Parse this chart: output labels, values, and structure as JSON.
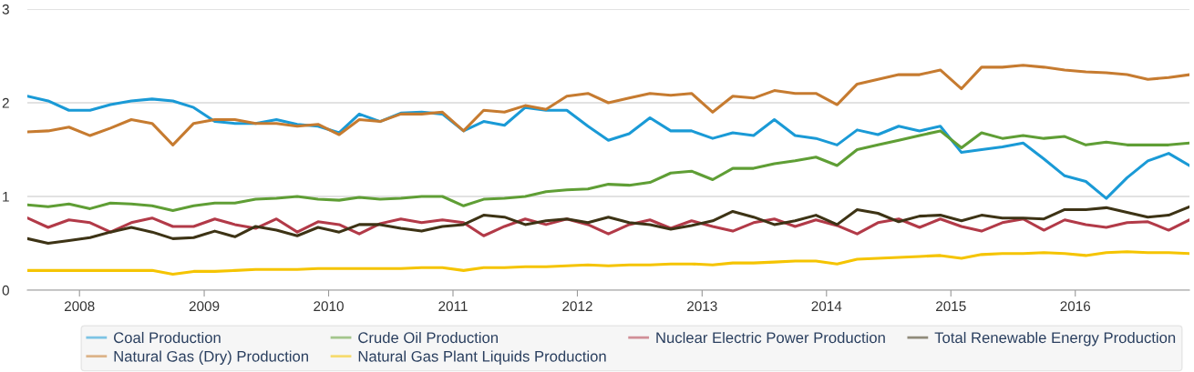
{
  "chart_data": {
    "type": "line",
    "x": [
      "2007-08",
      "2007-10",
      "2007-12",
      "2008-02",
      "2008-04",
      "2008-06",
      "2008-08",
      "2008-10",
      "2008-12",
      "2009-02",
      "2009-04",
      "2009-06",
      "2009-08",
      "2009-10",
      "2009-12",
      "2010-02",
      "2010-04",
      "2010-06",
      "2010-08",
      "2010-10",
      "2010-12",
      "2011-02",
      "2011-04",
      "2011-06",
      "2011-08",
      "2011-10",
      "2011-12",
      "2012-02",
      "2012-04",
      "2012-06",
      "2012-08",
      "2012-10",
      "2012-12",
      "2013-02",
      "2013-04",
      "2013-06",
      "2013-08",
      "2013-10",
      "2013-12",
      "2014-02",
      "2014-04",
      "2014-06",
      "2014-08",
      "2014-10",
      "2014-12",
      "2015-02",
      "2015-04",
      "2015-06",
      "2015-08",
      "2015-10",
      "2015-12",
      "2016-02",
      "2016-04",
      "2016-06",
      "2016-08",
      "2016-10",
      "2016-12"
    ],
    "series": [
      {
        "name": "Coal Production",
        "color": "#1a9ad6",
        "values": [
          2.07,
          2.02,
          1.92,
          1.92,
          1.98,
          2.02,
          2.04,
          2.02,
          1.95,
          1.8,
          1.78,
          1.78,
          1.82,
          1.77,
          1.75,
          1.68,
          1.88,
          1.8,
          1.89,
          1.9,
          1.88,
          1.7,
          1.8,
          1.76,
          1.95,
          1.92,
          1.92,
          1.75,
          1.6,
          1.67,
          1.84,
          1.7,
          1.7,
          1.62,
          1.68,
          1.65,
          1.82,
          1.65,
          1.62,
          1.55,
          1.71,
          1.66,
          1.75,
          1.7,
          1.75,
          1.47,
          1.5,
          1.53,
          1.57,
          1.4,
          1.22,
          1.16,
          0.98,
          1.2,
          1.38,
          1.46,
          1.33
        ]
      },
      {
        "name": "Natural Gas (Dry) Production",
        "color": "#c67b30",
        "values": [
          1.69,
          1.7,
          1.74,
          1.65,
          1.73,
          1.82,
          1.78,
          1.55,
          1.78,
          1.82,
          1.82,
          1.78,
          1.78,
          1.75,
          1.77,
          1.66,
          1.82,
          1.8,
          1.88,
          1.88,
          1.9,
          1.7,
          1.92,
          1.9,
          1.97,
          1.93,
          2.07,
          2.1,
          2.0,
          2.05,
          2.1,
          2.08,
          2.1,
          1.9,
          2.07,
          2.05,
          2.13,
          2.1,
          2.1,
          1.98,
          2.2,
          2.25,
          2.3,
          2.3,
          2.35,
          2.15,
          2.38,
          2.38,
          2.4,
          2.38,
          2.35,
          2.33,
          2.32,
          2.3,
          2.25,
          2.27,
          2.3
        ]
      },
      {
        "name": "Crude Oil Production",
        "color": "#5f9e35",
        "values": [
          0.91,
          0.89,
          0.92,
          0.87,
          0.93,
          0.92,
          0.9,
          0.85,
          0.9,
          0.93,
          0.93,
          0.97,
          0.98,
          1.0,
          0.97,
          0.96,
          0.99,
          0.97,
          0.98,
          1.0,
          1.0,
          0.9,
          0.97,
          0.98,
          1.0,
          1.05,
          1.07,
          1.08,
          1.13,
          1.12,
          1.15,
          1.25,
          1.27,
          1.18,
          1.3,
          1.3,
          1.35,
          1.38,
          1.42,
          1.33,
          1.5,
          1.55,
          1.6,
          1.65,
          1.7,
          1.52,
          1.68,
          1.62,
          1.65,
          1.62,
          1.64,
          1.55,
          1.58,
          1.55,
          1.55,
          1.55,
          1.57
        ]
      },
      {
        "name": "Natural Gas Plant Liquids Production",
        "color": "#f5c400",
        "values": [
          0.21,
          0.21,
          0.21,
          0.21,
          0.21,
          0.21,
          0.21,
          0.17,
          0.2,
          0.2,
          0.21,
          0.22,
          0.22,
          0.22,
          0.23,
          0.23,
          0.23,
          0.23,
          0.23,
          0.24,
          0.24,
          0.21,
          0.24,
          0.24,
          0.25,
          0.25,
          0.26,
          0.27,
          0.26,
          0.27,
          0.27,
          0.28,
          0.28,
          0.27,
          0.29,
          0.29,
          0.3,
          0.31,
          0.31,
          0.28,
          0.33,
          0.34,
          0.35,
          0.36,
          0.37,
          0.34,
          0.38,
          0.39,
          0.39,
          0.4,
          0.39,
          0.37,
          0.4,
          0.41,
          0.4,
          0.4,
          0.39
        ]
      },
      {
        "name": "Nuclear Electric Power Production",
        "color": "#b23a48",
        "values": [
          0.77,
          0.67,
          0.75,
          0.72,
          0.62,
          0.72,
          0.77,
          0.68,
          0.68,
          0.76,
          0.7,
          0.66,
          0.76,
          0.62,
          0.73,
          0.7,
          0.6,
          0.71,
          0.76,
          0.72,
          0.75,
          0.72,
          0.58,
          0.68,
          0.76,
          0.7,
          0.76,
          0.7,
          0.6,
          0.7,
          0.75,
          0.66,
          0.74,
          0.68,
          0.63,
          0.72,
          0.76,
          0.68,
          0.75,
          0.69,
          0.6,
          0.72,
          0.76,
          0.67,
          0.76,
          0.68,
          0.63,
          0.72,
          0.76,
          0.64,
          0.75,
          0.7,
          0.67,
          0.72,
          0.73,
          0.64,
          0.75
        ]
      },
      {
        "name": "Total Renewable Energy Production",
        "color": "#3d3315",
        "values": [
          0.55,
          0.5,
          0.53,
          0.56,
          0.62,
          0.67,
          0.62,
          0.55,
          0.56,
          0.63,
          0.57,
          0.68,
          0.64,
          0.58,
          0.67,
          0.62,
          0.7,
          0.7,
          0.66,
          0.63,
          0.68,
          0.7,
          0.8,
          0.78,
          0.7,
          0.74,
          0.76,
          0.72,
          0.78,
          0.72,
          0.7,
          0.65,
          0.69,
          0.74,
          0.84,
          0.78,
          0.7,
          0.74,
          0.8,
          0.7,
          0.86,
          0.82,
          0.73,
          0.79,
          0.8,
          0.74,
          0.8,
          0.77,
          0.77,
          0.76,
          0.86,
          0.86,
          0.88,
          0.83,
          0.78,
          0.8,
          0.89
        ]
      }
    ],
    "xlim": [
      "2007-08",
      "2016-12"
    ],
    "xticks": [
      "2008",
      "2009",
      "2010",
      "2011",
      "2012",
      "2013",
      "2014",
      "2015",
      "2016"
    ],
    "ylim": [
      0,
      3
    ],
    "yticks": [
      0,
      1,
      2,
      3
    ],
    "grid": "y",
    "legend": "bottom",
    "marker": "none",
    "line_style": "solid"
  }
}
